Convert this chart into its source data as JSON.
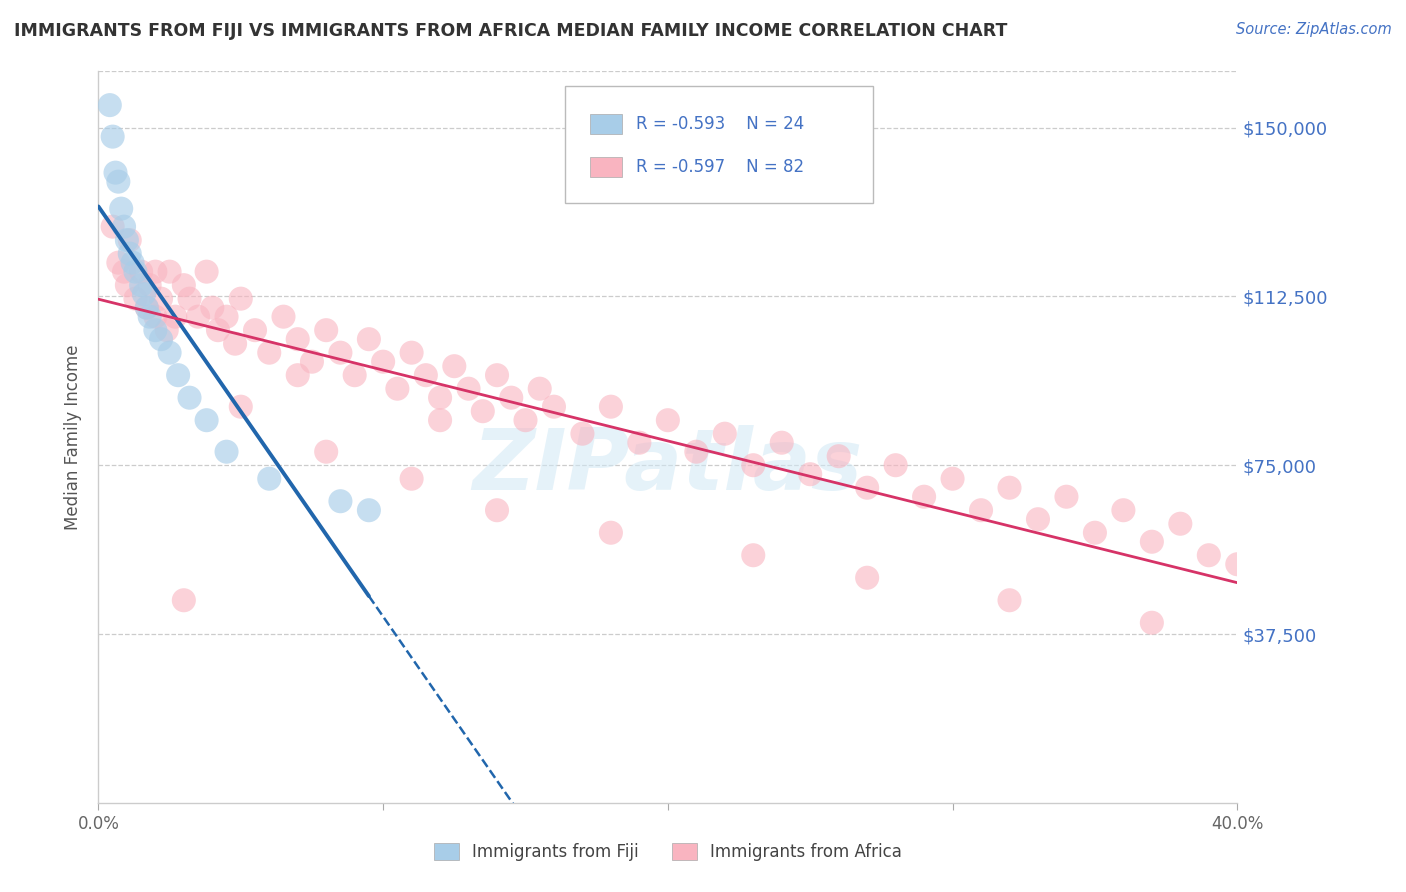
{
  "title": "IMMIGRANTS FROM FIJI VS IMMIGRANTS FROM AFRICA MEDIAN FAMILY INCOME CORRELATION CHART",
  "source": "Source: ZipAtlas.com",
  "ylabel": "Median Family Income",
  "xlim": [
    0.0,
    40.0
  ],
  "ylim": [
    0,
    162500
  ],
  "yticks": [
    0,
    37500,
    75000,
    112500,
    150000
  ],
  "ytick_labels": [
    "",
    "$37,500",
    "$75,000",
    "$112,500",
    "$150,000"
  ],
  "xticks": [
    0.0,
    10.0,
    20.0,
    30.0,
    40.0
  ],
  "xtick_labels": [
    "0.0%",
    "",
    "",
    "",
    "40.0%"
  ],
  "fiji_R": -0.593,
  "fiji_N": 24,
  "africa_R": -0.597,
  "africa_N": 82,
  "fiji_color": "#a8cde8",
  "africa_color": "#f9b4c0",
  "fiji_line_color": "#2166ac",
  "africa_line_color": "#d63367",
  "watermark": "ZIPatlas",
  "title_color": "#333333",
  "source_color": "#4472c4",
  "axis_label_color": "#4472c4",
  "fiji_scatter_x": [
    0.4,
    0.5,
    0.6,
    0.7,
    0.8,
    0.9,
    1.0,
    1.1,
    1.2,
    1.3,
    1.5,
    1.6,
    1.7,
    1.8,
    2.0,
    2.2,
    2.5,
    2.8,
    3.2,
    3.8,
    4.5,
    6.0,
    8.5,
    9.5
  ],
  "fiji_scatter_y": [
    155000,
    148000,
    140000,
    138000,
    132000,
    128000,
    125000,
    122000,
    120000,
    118000,
    115000,
    113000,
    110000,
    108000,
    105000,
    103000,
    100000,
    95000,
    90000,
    85000,
    78000,
    72000,
    67000,
    65000
  ],
  "africa_scatter_x": [
    0.5,
    0.7,
    0.9,
    1.0,
    1.1,
    1.3,
    1.5,
    1.7,
    1.8,
    2.0,
    2.2,
    2.4,
    2.5,
    2.7,
    3.0,
    3.2,
    3.5,
    3.8,
    4.0,
    4.2,
    4.5,
    4.8,
    5.0,
    5.5,
    6.0,
    6.5,
    7.0,
    7.5,
    8.0,
    8.5,
    9.0,
    9.5,
    10.0,
    10.5,
    11.0,
    11.5,
    12.0,
    12.5,
    13.0,
    13.5,
    14.0,
    14.5,
    15.0,
    15.5,
    16.0,
    17.0,
    18.0,
    19.0,
    20.0,
    21.0,
    22.0,
    23.0,
    24.0,
    25.0,
    26.0,
    27.0,
    28.0,
    29.0,
    30.0,
    31.0,
    32.0,
    33.0,
    34.0,
    35.0,
    36.0,
    37.0,
    38.0,
    39.0,
    40.0,
    3.0,
    5.0,
    8.0,
    11.0,
    14.0,
    18.0,
    23.0,
    27.0,
    32.0,
    37.0,
    2.0,
    7.0,
    12.0
  ],
  "africa_scatter_y": [
    128000,
    120000,
    118000,
    115000,
    125000,
    112000,
    118000,
    110000,
    115000,
    108000,
    112000,
    105000,
    118000,
    108000,
    115000,
    112000,
    108000,
    118000,
    110000,
    105000,
    108000,
    102000,
    112000,
    105000,
    100000,
    108000,
    103000,
    98000,
    105000,
    100000,
    95000,
    103000,
    98000,
    92000,
    100000,
    95000,
    90000,
    97000,
    92000,
    87000,
    95000,
    90000,
    85000,
    92000,
    88000,
    82000,
    88000,
    80000,
    85000,
    78000,
    82000,
    75000,
    80000,
    73000,
    77000,
    70000,
    75000,
    68000,
    72000,
    65000,
    70000,
    63000,
    68000,
    60000,
    65000,
    58000,
    62000,
    55000,
    53000,
    45000,
    88000,
    78000,
    72000,
    65000,
    60000,
    55000,
    50000,
    45000,
    40000,
    118000,
    95000,
    85000
  ]
}
